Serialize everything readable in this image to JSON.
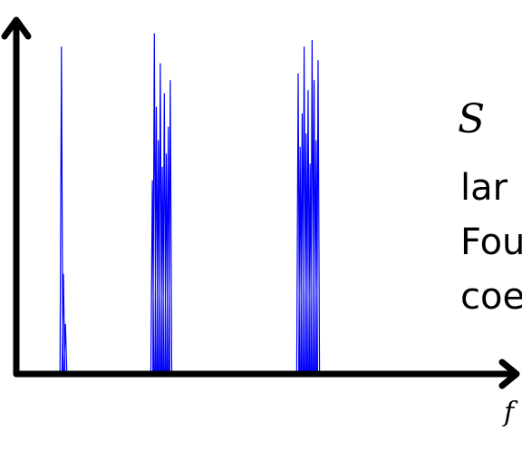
{
  "chart_data": {
    "type": "line",
    "title": "",
    "xlabel": "f",
    "ylabel": "",
    "grid": false,
    "legend": "none",
    "series_color": "#0000ff",
    "axis_color": "#000000",
    "peaks": [
      {
        "center": 70,
        "values": [
          0.98,
          0.3,
          0.15
        ]
      },
      {
        "center": 178,
        "values": [
          0.58,
          1.02,
          0.8,
          0.7,
          0.93,
          0.62,
          0.84,
          0.66,
          0.74,
          0.88
        ]
      },
      {
        "center": 340,
        "values": [
          0.9,
          0.68,
          0.78,
          0.98,
          0.72,
          0.85,
          0.63,
          1.0,
          0.88,
          0.7,
          0.94
        ]
      }
    ],
    "ylim": [
      0,
      1.06
    ]
  },
  "side_text": {
    "symbol": "S",
    "line1": "lar",
    "line2": "Fou",
    "line3": "coe"
  }
}
